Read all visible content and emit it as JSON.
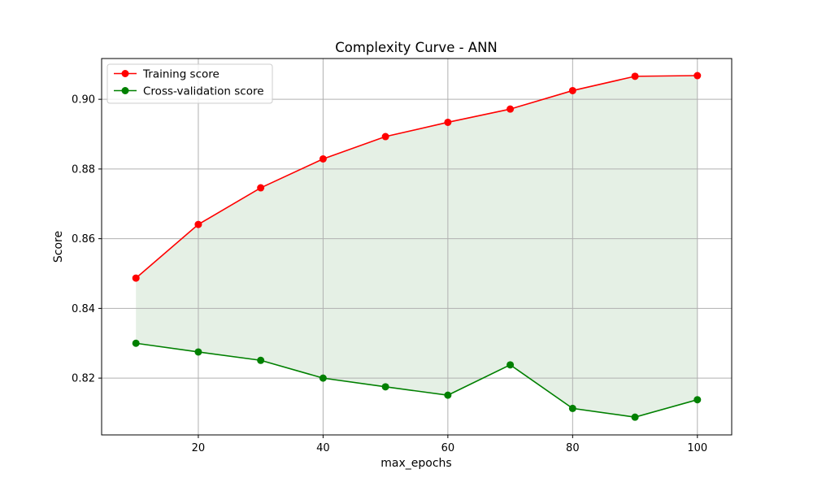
{
  "chart_data": {
    "type": "line",
    "title": "Complexity Curve - ANN",
    "xlabel": "max_epochs",
    "ylabel": "Score",
    "x": [
      10,
      20,
      30,
      40,
      50,
      60,
      70,
      80,
      90,
      100
    ],
    "xlim": [
      4.5,
      105.5
    ],
    "ylim": [
      0.8037,
      0.9117
    ],
    "xticks": [
      20,
      40,
      60,
      80,
      100
    ],
    "yticks": [
      0.82,
      0.84,
      0.86,
      0.88,
      0.9
    ],
    "ytick_labels": [
      "0.82",
      "0.84",
      "0.86",
      "0.88",
      "0.90"
    ],
    "grid": true,
    "legend_position": "upper-left",
    "fill_between": {
      "upper_series": 0,
      "lower_series": 1,
      "color": "#e5f0e5"
    },
    "series": [
      {
        "name": "Training score",
        "color": "#ff0000",
        "values": [
          0.8487,
          0.8641,
          0.8746,
          0.8829,
          0.8893,
          0.8934,
          0.8972,
          0.9025,
          0.9066,
          0.9068
        ]
      },
      {
        "name": "Cross-validation score",
        "color": "#008000",
        "values": [
          0.83,
          0.8275,
          0.8251,
          0.82,
          0.8175,
          0.8151,
          0.8238,
          0.8113,
          0.8088,
          0.8138
        ]
      }
    ]
  }
}
